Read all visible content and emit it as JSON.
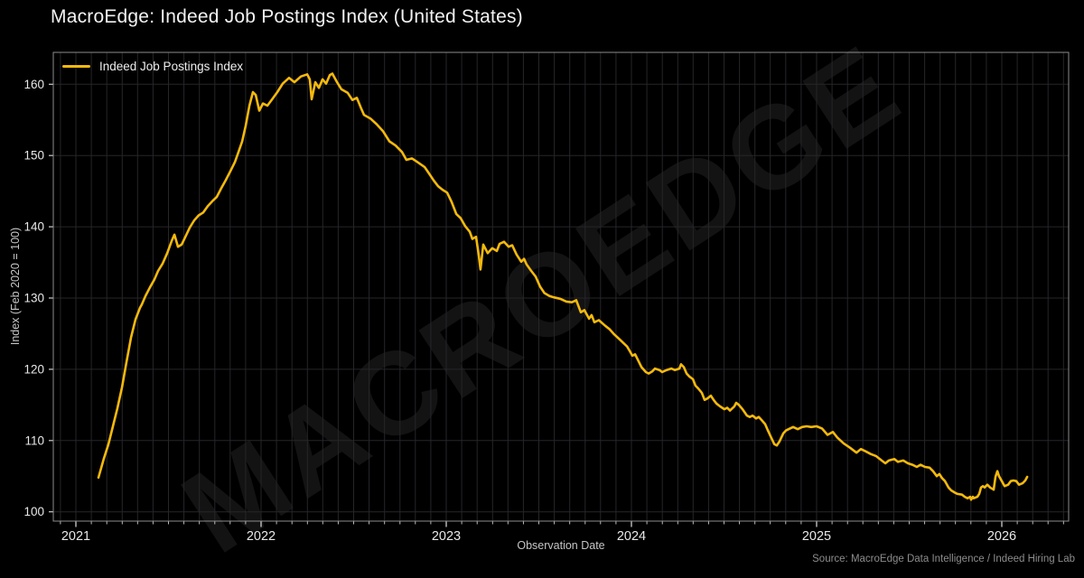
{
  "title": "MacroEdge: Indeed Job Postings Index (United States)",
  "watermark": "MACROEDGE",
  "source": "Source: MacroEdge Data Intelligence / Indeed Hiring Lab",
  "legend": {
    "label": "Indeed Job Postings Index"
  },
  "colors": {
    "background": "#000000",
    "line": "#f4b90d",
    "grid": "#26262a",
    "spine": "#8c8c8c",
    "tick": "#d0d0d0",
    "tick_label": "#e8e8e8",
    "title": "#f2f2f2",
    "axis_label": "#c6c6c6",
    "source": "#8d8d8d"
  },
  "chart_data": {
    "type": "line",
    "title": "MacroEdge: Indeed Job Postings Index (United States)",
    "xlabel": "Observation Date",
    "ylabel": "Index (Feb 2020 = 100)",
    "legend_position": "upper-left",
    "grid": "monthly vertical + 10-unit horizontal, dark gray on black",
    "xlim": [
      2020.878,
      2026.361
    ],
    "ylim": [
      98.69,
      164.48
    ],
    "xticks": [
      2021,
      2022,
      2023,
      2024,
      2025,
      2026
    ],
    "xtick_labels": [
      "2021",
      "2022",
      "2023",
      "2024",
      "2025",
      "2026"
    ],
    "minor_xtick_interval_years": 0.08333,
    "yticks": [
      100,
      110,
      120,
      130,
      140,
      150,
      160
    ],
    "ytick_labels": [
      "100",
      "110",
      "120",
      "130",
      "140",
      "150",
      "160"
    ],
    "series": [
      {
        "name": "Indeed Job Postings Index",
        "color": "#f4b90d",
        "points": [
          [
            2021.122,
            104.8
          ],
          [
            2021.15,
            107.4
          ],
          [
            2021.176,
            109.5
          ],
          [
            2021.2,
            112.0
          ],
          [
            2021.224,
            114.5
          ],
          [
            2021.249,
            117.5
          ],
          [
            2021.273,
            121.0
          ],
          [
            2021.298,
            124.5
          ],
          [
            2021.322,
            127.0
          ],
          [
            2021.346,
            128.6
          ],
          [
            2021.356,
            129.1
          ],
          [
            2021.376,
            130.3
          ],
          [
            2021.4,
            131.5
          ],
          [
            2021.424,
            132.6
          ],
          [
            2021.444,
            133.8
          ],
          [
            2021.468,
            134.8
          ],
          [
            2021.493,
            136.3
          ],
          [
            2021.517,
            138.0
          ],
          [
            2021.532,
            138.9
          ],
          [
            2021.551,
            137.2
          ],
          [
            2021.571,
            137.5
          ],
          [
            2021.595,
            138.8
          ],
          [
            2021.615,
            139.9
          ],
          [
            2021.639,
            140.9
          ],
          [
            2021.663,
            141.6
          ],
          [
            2021.688,
            142.0
          ],
          [
            2021.712,
            142.9
          ],
          [
            2021.737,
            143.6
          ],
          [
            2021.761,
            144.2
          ],
          [
            2021.785,
            145.4
          ],
          [
            2021.81,
            146.6
          ],
          [
            2021.834,
            147.8
          ],
          [
            2021.859,
            149.1
          ],
          [
            2021.878,
            150.5
          ],
          [
            2021.898,
            152.0
          ],
          [
            2021.917,
            154.2
          ],
          [
            2021.937,
            157.0
          ],
          [
            2021.956,
            158.9
          ],
          [
            2021.971,
            158.5
          ],
          [
            2021.99,
            156.3
          ],
          [
            2022.01,
            157.3
          ],
          [
            2022.034,
            157.0
          ],
          [
            2022.06,
            157.9
          ],
          [
            2022.088,
            158.9
          ],
          [
            2022.117,
            160.1
          ],
          [
            2022.151,
            160.9
          ],
          [
            2022.18,
            160.3
          ],
          [
            2022.215,
            161.1
          ],
          [
            2022.249,
            161.4
          ],
          [
            2022.263,
            160.7
          ],
          [
            2022.273,
            157.9
          ],
          [
            2022.293,
            160.3
          ],
          [
            2022.312,
            159.5
          ],
          [
            2022.332,
            160.7
          ],
          [
            2022.351,
            160.1
          ],
          [
            2022.371,
            161.3
          ],
          [
            2022.385,
            161.5
          ],
          [
            2022.41,
            160.3
          ],
          [
            2022.434,
            159.3
          ],
          [
            2022.468,
            158.8
          ],
          [
            2022.493,
            157.8
          ],
          [
            2022.517,
            158.1
          ],
          [
            2022.541,
            156.6
          ],
          [
            2022.556,
            155.7
          ],
          [
            2022.59,
            155.2
          ],
          [
            2022.624,
            154.4
          ],
          [
            2022.659,
            153.4
          ],
          [
            2022.693,
            152.0
          ],
          [
            2022.727,
            151.4
          ],
          [
            2022.761,
            150.5
          ],
          [
            2022.785,
            149.4
          ],
          [
            2022.815,
            149.6
          ],
          [
            2022.849,
            149.0
          ],
          [
            2022.883,
            148.4
          ],
          [
            2022.907,
            147.5
          ],
          [
            2022.932,
            146.5
          ],
          [
            2022.956,
            145.7
          ],
          [
            2022.98,
            145.2
          ],
          [
            2023.005,
            144.8
          ],
          [
            2023.029,
            143.5
          ],
          [
            2023.054,
            141.8
          ],
          [
            2023.078,
            141.2
          ],
          [
            2023.102,
            140.1
          ],
          [
            2023.127,
            139.3
          ],
          [
            2023.141,
            138.3
          ],
          [
            2023.161,
            138.6
          ],
          [
            2023.176,
            135.9
          ],
          [
            2023.185,
            134.0
          ],
          [
            2023.2,
            137.5
          ],
          [
            2023.224,
            136.3
          ],
          [
            2023.249,
            137.0
          ],
          [
            2023.273,
            136.6
          ],
          [
            2023.288,
            137.6
          ],
          [
            2023.312,
            137.9
          ],
          [
            2023.337,
            137.2
          ],
          [
            2023.356,
            137.4
          ],
          [
            2023.38,
            136.1
          ],
          [
            2023.405,
            135.1
          ],
          [
            2023.42,
            135.5
          ],
          [
            2023.434,
            134.7
          ],
          [
            2023.459,
            133.8
          ],
          [
            2023.483,
            133.0
          ],
          [
            2023.507,
            131.6
          ],
          [
            2023.53,
            130.7
          ],
          [
            2023.556,
            130.3
          ],
          [
            2023.58,
            130.1
          ],
          [
            2023.615,
            129.9
          ],
          [
            2023.649,
            129.5
          ],
          [
            2023.678,
            129.4
          ],
          [
            2023.702,
            129.7
          ],
          [
            2023.727,
            128.0
          ],
          [
            2023.746,
            128.3
          ],
          [
            2023.771,
            127.1
          ],
          [
            2023.785,
            127.6
          ],
          [
            2023.8,
            126.6
          ],
          [
            2023.824,
            126.9
          ],
          [
            2023.859,
            126.1
          ],
          [
            2023.883,
            125.6
          ],
          [
            2023.907,
            124.9
          ],
          [
            2023.932,
            124.3
          ],
          [
            2023.956,
            123.7
          ],
          [
            2023.976,
            123.2
          ],
          [
            2023.99,
            122.6
          ],
          [
            2024.005,
            121.9
          ],
          [
            2024.02,
            122.1
          ],
          [
            2024.039,
            121.1
          ],
          [
            2024.054,
            120.3
          ],
          [
            2024.078,
            119.6
          ],
          [
            2024.093,
            119.4
          ],
          [
            2024.112,
            119.7
          ],
          [
            2024.127,
            120.1
          ],
          [
            2024.151,
            119.9
          ],
          [
            2024.166,
            119.6
          ],
          [
            2024.19,
            119.9
          ],
          [
            2024.215,
            120.1
          ],
          [
            2024.234,
            119.9
          ],
          [
            2024.259,
            120.1
          ],
          [
            2024.268,
            120.7
          ],
          [
            2024.283,
            120.3
          ],
          [
            2024.298,
            119.4
          ],
          [
            2024.312,
            119.0
          ],
          [
            2024.332,
            118.6
          ],
          [
            2024.346,
            117.7
          ],
          [
            2024.361,
            117.3
          ],
          [
            2024.38,
            116.7
          ],
          [
            2024.395,
            115.7
          ],
          [
            2024.41,
            115.9
          ],
          [
            2024.429,
            116.3
          ],
          [
            2024.444,
            115.7
          ],
          [
            2024.459,
            115.2
          ],
          [
            2024.478,
            114.8
          ],
          [
            2024.502,
            114.4
          ],
          [
            2024.517,
            114.6
          ],
          [
            2024.532,
            114.2
          ],
          [
            2024.556,
            114.8
          ],
          [
            2024.566,
            115.3
          ],
          [
            2024.58,
            115.0
          ],
          [
            2024.6,
            114.4
          ],
          [
            2024.624,
            113.5
          ],
          [
            2024.639,
            113.3
          ],
          [
            2024.654,
            113.5
          ],
          [
            2024.673,
            113.1
          ],
          [
            2024.688,
            113.3
          ],
          [
            2024.702,
            112.9
          ],
          [
            2024.722,
            112.3
          ],
          [
            2024.737,
            111.4
          ],
          [
            2024.751,
            110.6
          ],
          [
            2024.771,
            109.5
          ],
          [
            2024.785,
            109.3
          ],
          [
            2024.8,
            109.9
          ],
          [
            2024.82,
            111.0
          ],
          [
            2024.834,
            111.4
          ],
          [
            2024.849,
            111.6
          ],
          [
            2024.873,
            111.9
          ],
          [
            2024.898,
            111.6
          ],
          [
            2024.922,
            111.9
          ],
          [
            2024.946,
            112.0
          ],
          [
            2024.971,
            111.9
          ],
          [
            2025.0,
            112.0
          ],
          [
            2025.029,
            111.7
          ],
          [
            2025.059,
            110.8
          ],
          [
            2025.088,
            111.2
          ],
          [
            2025.112,
            110.4
          ],
          [
            2025.146,
            109.6
          ],
          [
            2025.18,
            109.0
          ],
          [
            2025.215,
            108.3
          ],
          [
            2025.239,
            108.8
          ],
          [
            2025.263,
            108.5
          ],
          [
            2025.293,
            108.1
          ],
          [
            2025.322,
            107.8
          ],
          [
            2025.351,
            107.2
          ],
          [
            2025.371,
            106.8
          ],
          [
            2025.39,
            107.2
          ],
          [
            2025.42,
            107.4
          ],
          [
            2025.439,
            107.0
          ],
          [
            2025.468,
            107.2
          ],
          [
            2025.493,
            106.8
          ],
          [
            2025.517,
            106.6
          ],
          [
            2025.541,
            106.3
          ],
          [
            2025.561,
            106.6
          ],
          [
            2025.585,
            106.3
          ],
          [
            2025.61,
            106.2
          ],
          [
            2025.629,
            105.7
          ],
          [
            2025.649,
            105.0
          ],
          [
            2025.663,
            105.3
          ],
          [
            2025.678,
            104.7
          ],
          [
            2025.693,
            104.3
          ],
          [
            2025.712,
            103.4
          ],
          [
            2025.727,
            103.0
          ],
          [
            2025.746,
            102.7
          ],
          [
            2025.761,
            102.5
          ],
          [
            2025.785,
            102.4
          ],
          [
            2025.8,
            102.1
          ],
          [
            2025.815,
            101.9
          ],
          [
            2025.829,
            102.1
          ],
          [
            2025.834,
            101.7
          ],
          [
            2025.844,
            102.1
          ],
          [
            2025.849,
            101.9
          ],
          [
            2025.868,
            102.1
          ],
          [
            2025.878,
            102.5
          ],
          [
            2025.888,
            103.4
          ],
          [
            2025.898,
            103.6
          ],
          [
            2025.907,
            103.4
          ],
          [
            2025.922,
            103.8
          ],
          [
            2025.937,
            103.4
          ],
          [
            2025.956,
            103.1
          ],
          [
            2025.966,
            104.9
          ],
          [
            2025.976,
            105.7
          ],
          [
            2025.985,
            105.0
          ],
          [
            2026.0,
            104.3
          ],
          [
            2026.015,
            103.6
          ],
          [
            2026.034,
            103.8
          ],
          [
            2026.049,
            104.3
          ],
          [
            2026.063,
            104.4
          ],
          [
            2026.078,
            104.3
          ],
          [
            2026.093,
            103.8
          ],
          [
            2026.112,
            104.0
          ],
          [
            2026.127,
            104.4
          ],
          [
            2026.137,
            104.9
          ]
        ]
      }
    ]
  }
}
